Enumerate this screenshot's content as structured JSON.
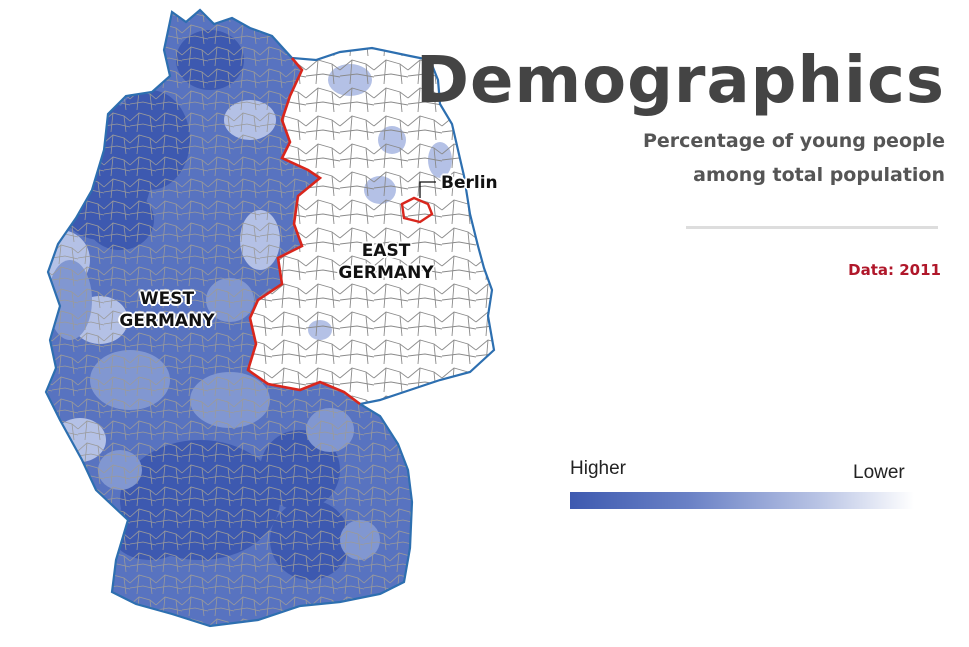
{
  "title": "Demographics",
  "subtitle": {
    "line1": "Percentage of young people",
    "line2": "among total population"
  },
  "data_note": "Data: 2011",
  "map": {
    "labels": {
      "west": [
        "WEST",
        "GERMANY"
      ],
      "east": [
        "EAST",
        "GERMANY"
      ],
      "berlin": "Berlin"
    },
    "colors": {
      "level1": "#3d59b0",
      "level2": "#5873c0",
      "level3": "#8197d1",
      "level4": "#b4c1e6",
      "level5": "#ffffff",
      "border_outline": "#2d6fb0",
      "inner_border": "#d9261c",
      "district_lines": "#9a9a9a"
    }
  },
  "legend": {
    "higher": "Higher",
    "lower": "Lower",
    "gradient": [
      "#3e5ab0",
      "#ffffff"
    ]
  }
}
